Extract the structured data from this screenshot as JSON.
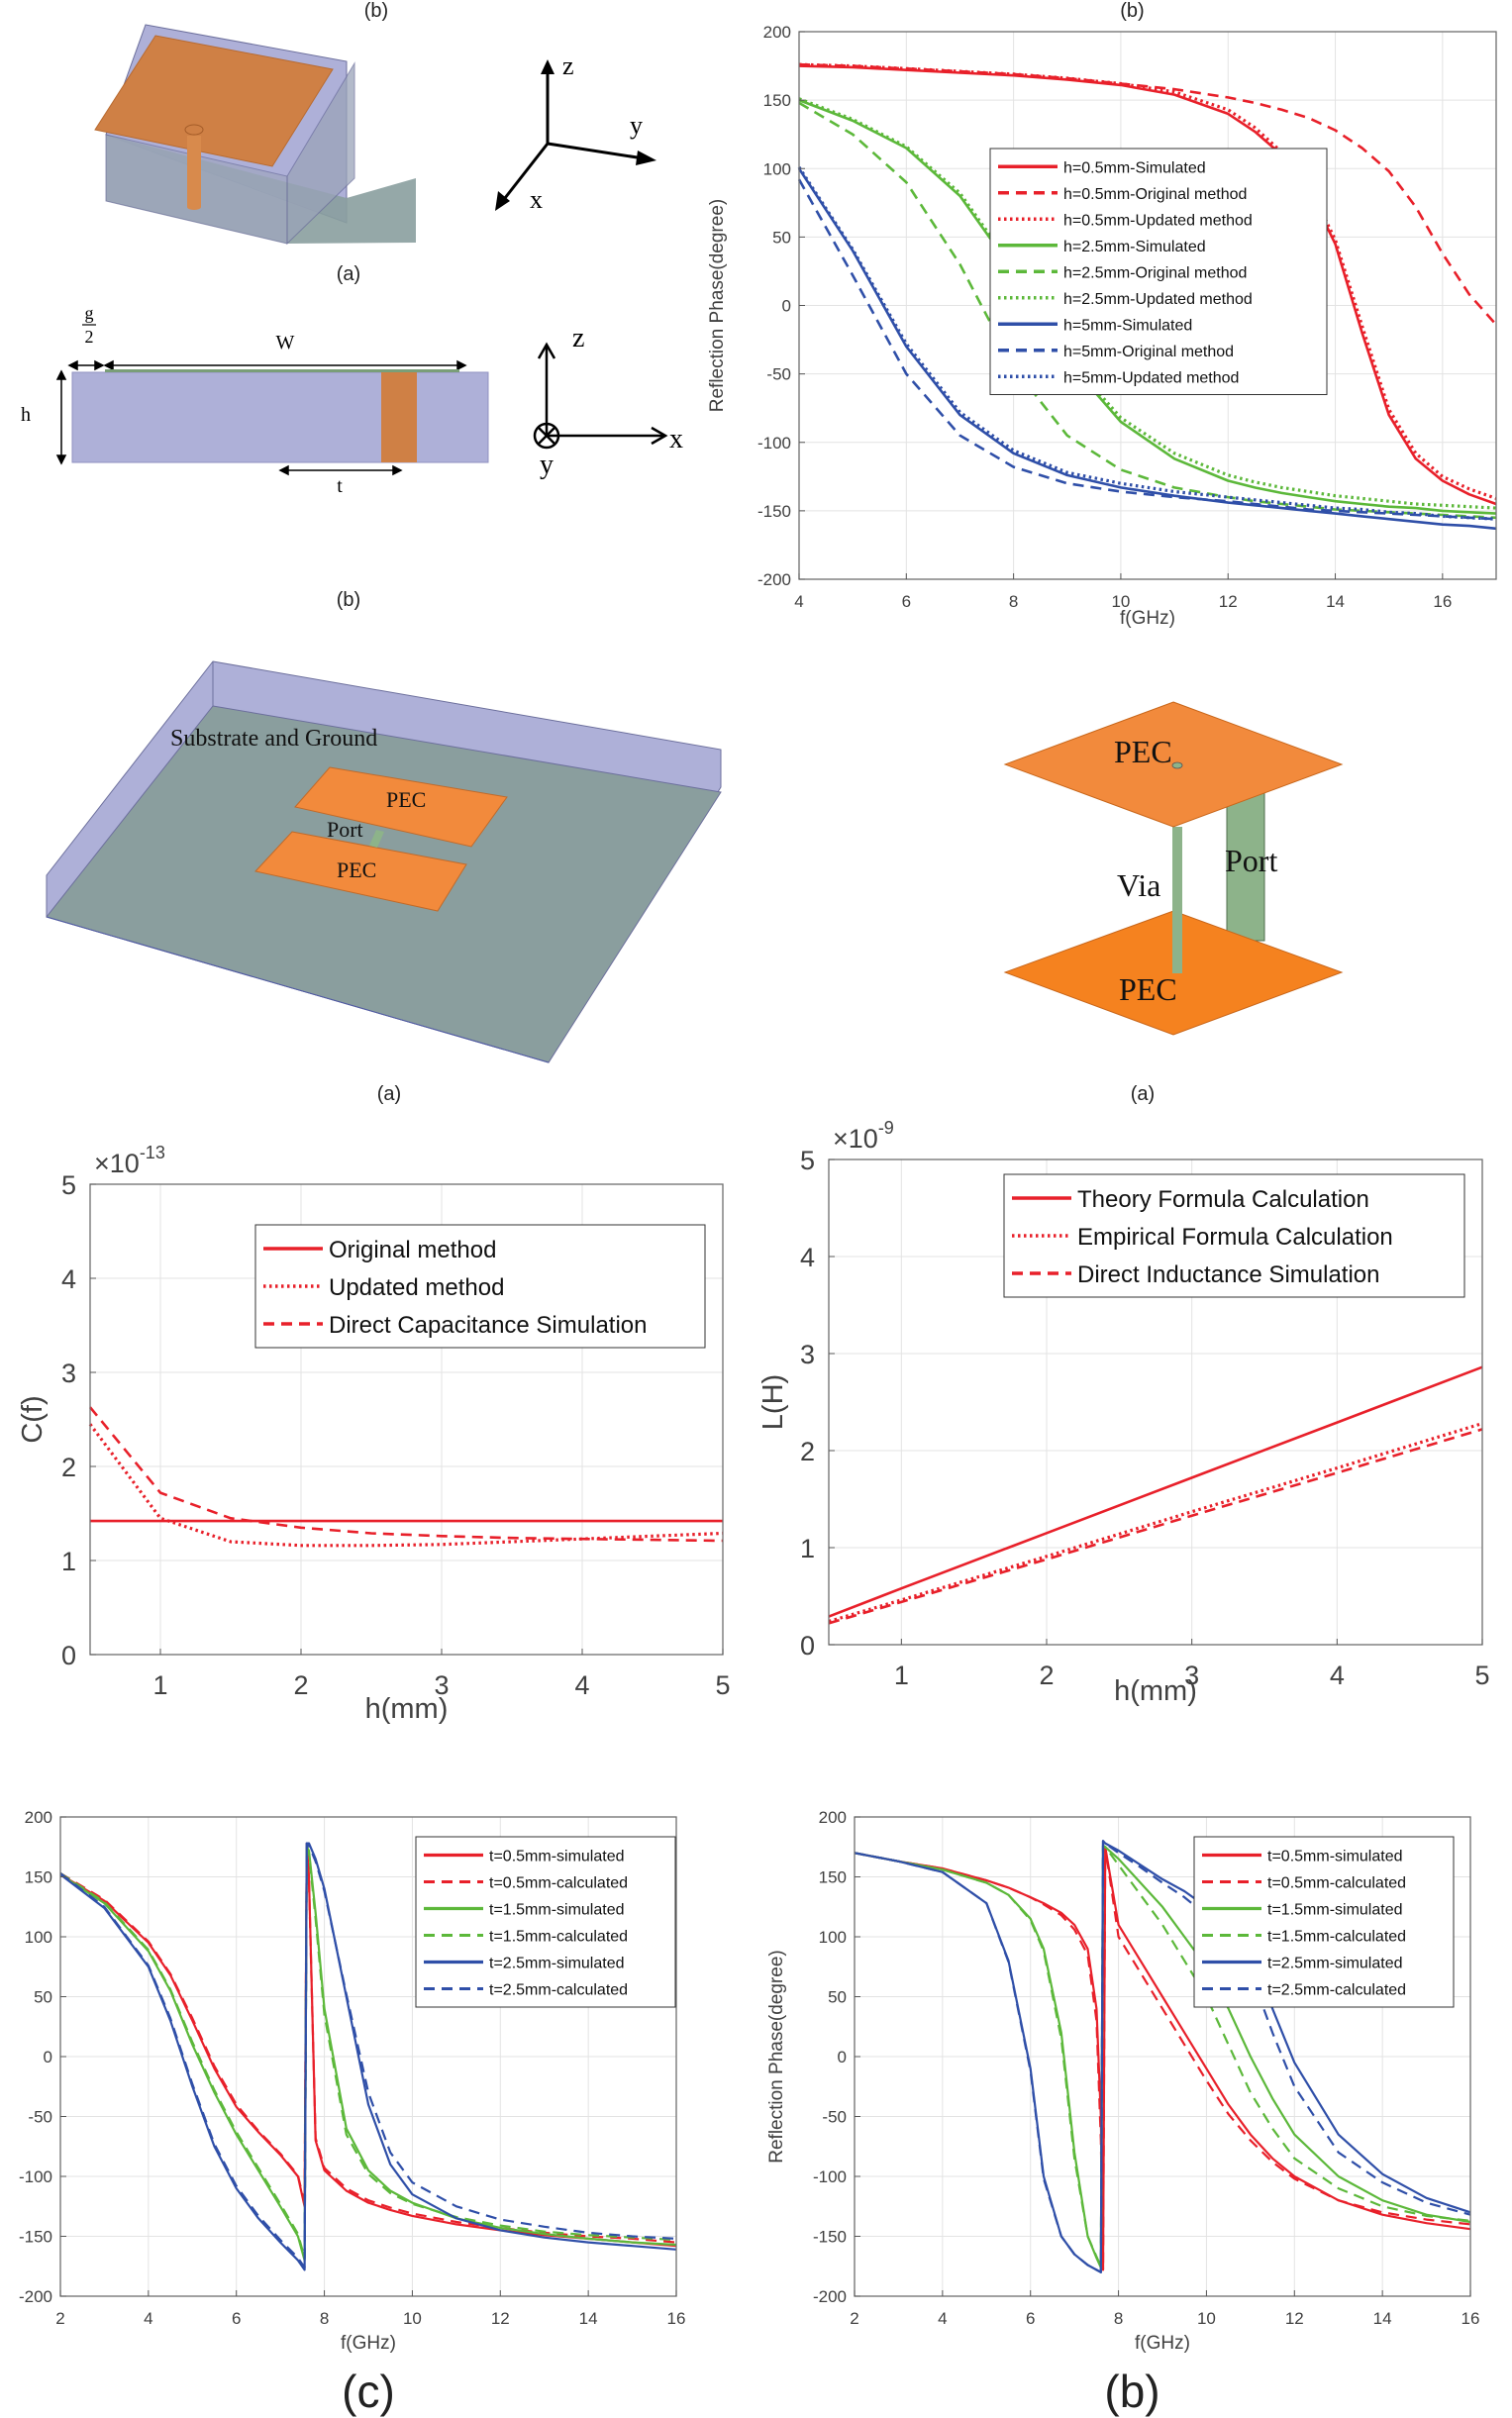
{
  "figures": {
    "unit_cell_3d": {
      "label": "(a)",
      "axes": {
        "z": "z",
        "y": "y",
        "x": "x"
      }
    },
    "unit_cell_side": {
      "label": "(b)",
      "dims": {
        "gap_num": "g",
        "gap_den": "2",
        "width": "W",
        "height": "h",
        "via_offset": "t"
      },
      "axes": {
        "z": "z",
        "x": "x",
        "y": "y"
      }
    },
    "capacitance_model": {
      "label": "(a)",
      "texts": {
        "substrate": "Substrate and Ground",
        "pec_top": "PEC",
        "pec_bottom": "PEC",
        "port": "Port"
      }
    },
    "inductance_model": {
      "label": "(a)",
      "texts": {
        "pec_top": "PEC",
        "pec_bottom": "PEC",
        "via": "Via",
        "port": "Port"
      }
    },
    "capacitance_chart_label": "(b)",
    "inductance_chart_label": "(b)",
    "t_sweep_left_label": "(c)",
    "t_sweep_right_label": "(b)"
  },
  "colors": {
    "red": "#e8202a",
    "green": "#5cb83a",
    "blue": "#2f4fa8",
    "substrate": "#aeb0d8",
    "ground": "#8a9e9e",
    "pec": "#f28a3c",
    "port": "#8db38a"
  },
  "chart_data": [
    {
      "id": "phase_vs_h",
      "type": "line",
      "title": "",
      "xlabel": "f(GHz)",
      "ylabel": "Reflection Phase(degree)",
      "xlim": [
        4,
        17
      ],
      "ylim": [
        -200,
        200
      ],
      "xticks": [
        4,
        6,
        8,
        10,
        12,
        14,
        16
      ],
      "yticks": [
        -200,
        -150,
        -100,
        -50,
        0,
        50,
        100,
        150,
        200
      ],
      "grid": true,
      "legend_position": "center-right",
      "x": [
        4,
        5,
        6,
        7,
        8,
        9,
        10,
        11,
        12,
        12.5,
        13,
        13.5,
        14,
        14.5,
        15,
        15.5,
        16,
        16.5,
        17
      ],
      "series": [
        {
          "name": "h=0.5mm-Simulated",
          "color": "red",
          "style": "solid",
          "values": [
            175,
            174,
            172,
            170,
            168,
            165,
            161,
            154,
            140,
            127,
            110,
            85,
            45,
            -20,
            -80,
            -112,
            -128,
            -138,
            -145
          ]
        },
        {
          "name": "h=0.5mm-Original method",
          "color": "red",
          "style": "dashed",
          "values": [
            176,
            175,
            173,
            171,
            169,
            166,
            162,
            158,
            152,
            148,
            143,
            137,
            128,
            115,
            98,
            72,
            38,
            8,
            -14
          ]
        },
        {
          "name": "h=0.5mm-Updated method",
          "color": "red",
          "style": "dotted",
          "values": [
            176,
            175,
            173,
            171,
            169,
            166,
            162,
            156,
            143,
            130,
            112,
            88,
            48,
            -15,
            -76,
            -108,
            -125,
            -134,
            -141
          ]
        },
        {
          "name": "h=2.5mm-Simulated",
          "color": "green",
          "style": "solid",
          "values": [
            150,
            135,
            115,
            80,
            25,
            -40,
            -85,
            -112,
            -128,
            -133,
            -137,
            -140,
            -143,
            -145,
            -147,
            -148,
            -150,
            -151,
            -152
          ]
        },
        {
          "name": "h=2.5mm-Original method",
          "color": "green",
          "style": "dashed",
          "values": [
            148,
            125,
            90,
            30,
            -45,
            -95,
            -120,
            -133,
            -140,
            -143,
            -145,
            -147,
            -149,
            -150,
            -151,
            -152,
            -153,
            -154,
            -155
          ]
        },
        {
          "name": "h=2.5mm-Updated method",
          "color": "green",
          "style": "dotted",
          "values": [
            151,
            136,
            116,
            82,
            27,
            -38,
            -82,
            -108,
            -124,
            -129,
            -133,
            -136,
            -139,
            -141,
            -143,
            -145,
            -146,
            -147,
            -148
          ]
        },
        {
          "name": "h=5mm-Simulated",
          "color": "blue",
          "style": "solid",
          "values": [
            100,
            40,
            -30,
            -80,
            -108,
            -124,
            -133,
            -139,
            -144,
            -146,
            -148,
            -150,
            -152,
            -154,
            -156,
            -158,
            -160,
            -161,
            -163
          ]
        },
        {
          "name": "h=5mm-Original method",
          "color": "blue",
          "style": "dashed",
          "values": [
            92,
            22,
            -50,
            -95,
            -118,
            -130,
            -136,
            -140,
            -143,
            -145,
            -147,
            -149,
            -150,
            -151,
            -152,
            -153,
            -154,
            -155,
            -156
          ]
        },
        {
          "name": "h=5mm-Updated method",
          "color": "blue",
          "style": "dotted",
          "values": [
            101,
            41,
            -28,
            -78,
            -106,
            -122,
            -130,
            -136,
            -140,
            -142,
            -144,
            -146,
            -148,
            -149,
            -151,
            -152,
            -154,
            -155,
            -156
          ]
        }
      ]
    },
    {
      "id": "capacitance_vs_h",
      "type": "line",
      "xlabel": "h(mm)",
      "ylabel": "C(f)",
      "y_multiplier": "×10",
      "y_exponent": "-13",
      "xlim": [
        0.5,
        5
      ],
      "ylim": [
        0,
        5
      ],
      "xticks": [
        1,
        2,
        3,
        4,
        5
      ],
      "yticks": [
        0,
        1,
        2,
        3,
        4,
        5
      ],
      "grid": true,
      "legend_position": "top-right",
      "x": [
        0.5,
        1,
        1.5,
        2,
        2.5,
        3,
        3.5,
        4,
        4.5,
        5
      ],
      "series": [
        {
          "name": "Original method",
          "color": "red",
          "style": "solid",
          "values": [
            1.42,
            1.42,
            1.42,
            1.42,
            1.42,
            1.42,
            1.42,
            1.42,
            1.42,
            1.42
          ]
        },
        {
          "name": "Updated method",
          "color": "red",
          "style": "dotted",
          "values": [
            2.45,
            1.45,
            1.2,
            1.16,
            1.16,
            1.17,
            1.2,
            1.23,
            1.26,
            1.29
          ]
        },
        {
          "name": "Direct Capacitance Simulation",
          "color": "red",
          "style": "dashed",
          "values": [
            2.63,
            1.72,
            1.45,
            1.35,
            1.29,
            1.26,
            1.24,
            1.23,
            1.22,
            1.21
          ]
        }
      ]
    },
    {
      "id": "inductance_vs_h",
      "type": "line",
      "xlabel": "h(mm)",
      "ylabel": "L(H)",
      "y_multiplier": "×10",
      "y_exponent": "-9",
      "xlim": [
        0.5,
        5
      ],
      "ylim": [
        0,
        5
      ],
      "xticks": [
        1,
        2,
        3,
        4,
        5
      ],
      "yticks": [
        0,
        1,
        2,
        3,
        4,
        5
      ],
      "grid": true,
      "legend_position": "top-right",
      "x": [
        0.5,
        1,
        2,
        3,
        4,
        5
      ],
      "series": [
        {
          "name": "Theory Formula Calculation",
          "color": "red",
          "style": "solid",
          "values": [
            0.29,
            0.58,
            1.15,
            1.72,
            2.29,
            2.86
          ]
        },
        {
          "name": "Empirical Formula Calculation",
          "color": "red",
          "style": "dotted",
          "values": [
            0.24,
            0.46,
            0.91,
            1.37,
            1.82,
            2.28
          ]
        },
        {
          "name": "Direct Inductance Simulation",
          "color": "red",
          "style": "dashed",
          "values": [
            0.22,
            0.44,
            0.88,
            1.33,
            1.77,
            2.22
          ]
        }
      ]
    },
    {
      "id": "phase_vs_t_a",
      "type": "line",
      "xlabel": "f(GHz)",
      "ylabel": "",
      "xlim": [
        2,
        16
      ],
      "ylim": [
        -200,
        200
      ],
      "xticks": [
        2,
        4,
        6,
        8,
        10,
        12,
        14,
        16
      ],
      "yticks": [
        -200,
        -150,
        -100,
        -50,
        0,
        50,
        100,
        150,
        200
      ],
      "grid": true,
      "legend_position": "top-right",
      "x": [
        2,
        3,
        4,
        4.5,
        5,
        5.5,
        6,
        6.5,
        7,
        7.4,
        7.55,
        7.6,
        7.65,
        7.8,
        8,
        8.5,
        9,
        9.5,
        10,
        11,
        12,
        13,
        14,
        15,
        16
      ],
      "series": [
        {
          "name": "t=0.5mm-simulated",
          "color": "red",
          "style": "solid",
          "values": [
            152,
            130,
            95,
            68,
            30,
            -10,
            -42,
            -63,
            -82,
            -100,
            -125,
            178,
            150,
            -70,
            -95,
            -112,
            -122,
            -128,
            -133,
            -140,
            -145,
            -149,
            -152,
            -155,
            -158
          ]
        },
        {
          "name": "t=0.5mm-calculated",
          "color": "red",
          "style": "dashed",
          "values": [
            153,
            131,
            96,
            69,
            32,
            -8,
            -40,
            -62,
            -81,
            -99,
            -123,
            178,
            148,
            -68,
            -93,
            -110,
            -120,
            -126,
            -131,
            -138,
            -143,
            -147,
            -150,
            -152,
            -155
          ]
        },
        {
          "name": "t=1.5mm-simulated",
          "color": "green",
          "style": "solid",
          "values": [
            152,
            128,
            88,
            55,
            10,
            -30,
            -65,
            -95,
            -125,
            -150,
            -170,
            175,
            172,
            120,
            40,
            -60,
            -95,
            -112,
            -122,
            -135,
            -143,
            -148,
            -152,
            -155,
            -157
          ]
        },
        {
          "name": "t=1.5mm-calculated",
          "color": "green",
          "style": "dashed",
          "values": [
            153,
            129,
            89,
            56,
            12,
            -28,
            -63,
            -93,
            -123,
            -148,
            -168,
            175,
            170,
            115,
            35,
            -65,
            -98,
            -114,
            -123,
            -134,
            -141,
            -146,
            -149,
            -151,
            -153
          ]
        },
        {
          "name": "t=2.5mm-simulated",
          "color": "blue",
          "style": "solid",
          "values": [
            152,
            124,
            75,
            30,
            -25,
            -75,
            -110,
            -135,
            -155,
            -170,
            -178,
            178,
            178,
            165,
            140,
            50,
            -40,
            -90,
            -115,
            -135,
            -145,
            -151,
            -155,
            -158,
            -161
          ]
        },
        {
          "name": "t=2.5mm-calculated",
          "color": "blue",
          "style": "dashed",
          "values": [
            153,
            125,
            76,
            32,
            -23,
            -73,
            -108,
            -133,
            -153,
            -168,
            -176,
            178,
            176,
            163,
            138,
            52,
            -30,
            -80,
            -105,
            -125,
            -136,
            -142,
            -147,
            -150,
            -152
          ]
        }
      ]
    },
    {
      "id": "phase_vs_t_b",
      "type": "line",
      "xlabel": "f(GHz)",
      "ylabel": "Reflection Phase(degree)",
      "xlim": [
        2,
        16
      ],
      "ylim": [
        -200,
        200
      ],
      "xticks": [
        2,
        4,
        6,
        8,
        10,
        12,
        14,
        16
      ],
      "yticks": [
        -200,
        -150,
        -100,
        -50,
        0,
        50,
        100,
        150,
        200
      ],
      "grid": true,
      "legend_position": "top-right",
      "x": [
        2,
        3,
        4,
        5,
        5.5,
        6,
        6.3,
        6.7,
        7,
        7.3,
        7.5,
        7.6,
        7.65,
        7.7,
        8,
        8.5,
        9,
        9.5,
        10,
        10.5,
        11,
        11.5,
        12,
        13,
        14,
        15,
        16
      ],
      "series": [
        {
          "name": "t=0.5mm-simulated",
          "color": "red",
          "style": "solid",
          "values": [
            170,
            163,
            157,
            147,
            141,
            133,
            128,
            120,
            110,
            90,
            40,
            -50,
            -178,
            175,
            110,
            80,
            50,
            20,
            -10,
            -40,
            -65,
            -85,
            -100,
            -120,
            -132,
            -139,
            -144
          ]
        },
        {
          "name": "t=0.5mm-calculated",
          "color": "red",
          "style": "dashed",
          "values": [
            170,
            163,
            157,
            147,
            141,
            133,
            127,
            118,
            106,
            85,
            30,
            -70,
            -178,
            175,
            100,
            70,
            40,
            10,
            -20,
            -48,
            -70,
            -88,
            -102,
            -120,
            -130,
            -136,
            -140
          ]
        },
        {
          "name": "t=1.5mm-simulated",
          "color": "green",
          "style": "solid",
          "values": [
            170,
            163,
            156,
            145,
            135,
            115,
            90,
            20,
            -80,
            -150,
            -168,
            -176,
            176,
            175,
            165,
            145,
            125,
            100,
            75,
            40,
            0,
            -35,
            -65,
            -100,
            -120,
            -132,
            -138
          ]
        },
        {
          "name": "t=1.5mm-calculated",
          "color": "green",
          "style": "dashed",
          "values": [
            170,
            163,
            156,
            145,
            135,
            114,
            88,
            15,
            -85,
            -150,
            -167,
            -175,
            176,
            175,
            160,
            135,
            110,
            80,
            50,
            10,
            -30,
            -60,
            -85,
            -110,
            -125,
            -133,
            -137
          ]
        },
        {
          "name": "t=2.5mm-simulated",
          "color": "blue",
          "style": "solid",
          "values": [
            170,
            163,
            154,
            128,
            80,
            -10,
            -100,
            -150,
            -165,
            -174,
            -178,
            -180,
            180,
            178,
            172,
            160,
            148,
            138,
            125,
            108,
            85,
            40,
            -5,
            -65,
            -98,
            -118,
            -130
          ]
        },
        {
          "name": "t=2.5mm-calculated",
          "color": "blue",
          "style": "dashed",
          "values": [
            170,
            163,
            154,
            128,
            79,
            -12,
            -102,
            -150,
            -165,
            -174,
            -178,
            -180,
            180,
            178,
            170,
            158,
            145,
            133,
            118,
            100,
            70,
            20,
            -25,
            -80,
            -105,
            -122,
            -132
          ]
        }
      ]
    }
  ]
}
